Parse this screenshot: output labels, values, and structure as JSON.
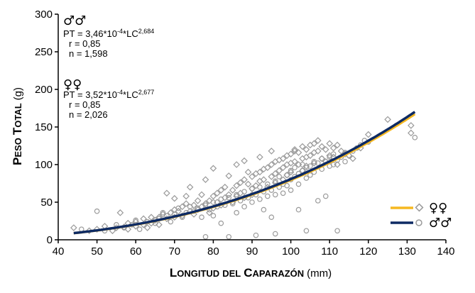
{
  "chart_data": {
    "type": "scatter",
    "xlabel": "Longitud del Caparazón",
    "xlabel_parts": {
      "L": "L",
      "ONGITUD": "ONGITUD",
      "DEL": "DEL",
      "C": "C",
      "APARAZON": "APARAZÓN",
      "unit": "(mm)"
    },
    "ylabel": "Peso Total (g)",
    "ylabel_parts": {
      "P": "P",
      "ESO": "ESO",
      "T": "T",
      "OTAL": "OTAL",
      "unit": "(g)"
    },
    "xlim": [
      40,
      140
    ],
    "ylim": [
      0,
      300
    ],
    "x_ticks": [
      "40",
      "50",
      "60",
      "70",
      "80",
      "90",
      "100",
      "110",
      "120",
      "130",
      "140"
    ],
    "y_ticks": [
      "0",
      "50",
      "100",
      "150",
      "200",
      "250",
      "300"
    ],
    "grid": false,
    "legend_position": "bottom-right",
    "series": [
      {
        "group": "female",
        "symbol": "♀♀",
        "marker": "diamond",
        "marker_color": "#9a9a9a",
        "line_color": "#f6b820",
        "model": {
          "a": 0.000352,
          "b": 2.677,
          "x_range": [
            44,
            132
          ]
        },
        "equation": {
          "prefix": "PT = 3,52*10",
          "exp1": "-4",
          "mid": "*LC",
          "exp2": "2,677"
        },
        "r": "r = 0,85",
        "n": "n = 2,026",
        "scatter_points": [
          [
            44,
            16
          ],
          [
            48,
            12
          ],
          [
            50,
            14
          ],
          [
            52,
            18
          ],
          [
            54,
            12
          ],
          [
            55,
            16
          ],
          [
            56,
            36
          ],
          [
            57,
            17
          ],
          [
            58,
            22
          ],
          [
            58,
            14
          ],
          [
            60,
            24
          ],
          [
            60,
            18
          ],
          [
            62,
            20
          ],
          [
            62,
            28
          ],
          [
            63,
            16
          ],
          [
            64,
            30
          ],
          [
            64,
            22
          ],
          [
            65,
            26
          ],
          [
            66,
            30
          ],
          [
            66,
            20
          ],
          [
            67,
            34
          ],
          [
            68,
            62
          ],
          [
            68,
            28
          ],
          [
            69,
            36
          ],
          [
            70,
            40
          ],
          [
            70,
            30
          ],
          [
            70,
            55
          ],
          [
            71,
            38
          ],
          [
            72,
            44
          ],
          [
            72,
            32
          ],
          [
            73,
            48
          ],
          [
            73,
            58
          ],
          [
            74,
            38
          ],
          [
            74,
            70
          ],
          [
            75,
            46
          ],
          [
            75,
            34
          ],
          [
            76,
            52
          ],
          [
            76,
            40
          ],
          [
            77,
            60
          ],
          [
            77,
            44
          ],
          [
            78,
            48
          ],
          [
            78,
            80
          ],
          [
            79,
            52
          ],
          [
            79,
            36
          ],
          [
            80,
            58
          ],
          [
            80,
            42
          ],
          [
            80,
            95
          ],
          [
            81,
            62
          ],
          [
            81,
            50
          ],
          [
            82,
            66
          ],
          [
            82,
            46
          ],
          [
            83,
            70
          ],
          [
            83,
            56
          ],
          [
            84,
            60
          ],
          [
            84,
            85
          ],
          [
            85,
            66
          ],
          [
            85,
            50
          ],
          [
            86,
            72
          ],
          [
            86,
            58
          ],
          [
            86,
            100
          ],
          [
            87,
            76
          ],
          [
            87,
            62
          ],
          [
            88,
            80
          ],
          [
            88,
            56
          ],
          [
            88,
            105
          ],
          [
            89,
            74
          ],
          [
            89,
            90
          ],
          [
            90,
            84
          ],
          [
            90,
            68
          ],
          [
            90,
            60
          ],
          [
            91,
            88
          ],
          [
            91,
            72
          ],
          [
            92,
            90
          ],
          [
            92,
            78
          ],
          [
            92,
            110
          ],
          [
            93,
            94
          ],
          [
            93,
            80
          ],
          [
            94,
            96
          ],
          [
            94,
            70
          ],
          [
            95,
            100
          ],
          [
            95,
            84
          ],
          [
            95,
            118
          ],
          [
            96,
            104
          ],
          [
            96,
            88
          ],
          [
            96,
            76
          ],
          [
            97,
            106
          ],
          [
            97,
            92
          ],
          [
            98,
            108
          ],
          [
            98,
            96
          ],
          [
            98,
            80
          ],
          [
            99,
            112
          ],
          [
            99,
            100
          ],
          [
            99,
            86
          ],
          [
            100,
            114
          ],
          [
            100,
            102
          ],
          [
            100,
            90
          ],
          [
            101,
            118
          ],
          [
            101,
            104
          ],
          [
            101,
            120
          ],
          [
            102,
            116
          ],
          [
            102,
            100
          ],
          [
            103,
            124
          ],
          [
            103,
            108
          ],
          [
            103,
            92
          ],
          [
            104,
            120
          ],
          [
            104,
            110
          ],
          [
            104,
            98
          ],
          [
            105,
            126
          ],
          [
            105,
            112
          ],
          [
            106,
            128
          ],
          [
            106,
            116
          ],
          [
            106,
            102
          ],
          [
            107,
            132
          ],
          [
            107,
            118
          ],
          [
            108,
            124
          ],
          [
            108,
            108
          ],
          [
            109,
            120
          ],
          [
            109,
            104
          ],
          [
            110,
            128
          ],
          [
            110,
            112
          ],
          [
            111,
            122
          ],
          [
            111,
            110
          ],
          [
            112,
            126
          ],
          [
            112,
            100
          ],
          [
            113,
            118
          ],
          [
            114,
            114
          ],
          [
            115,
            112
          ],
          [
            116,
            108
          ],
          [
            118,
            122
          ],
          [
            120,
            140
          ],
          [
            125,
            160
          ],
          [
            131,
            152
          ],
          [
            131,
            142
          ]
        ]
      },
      {
        "group": "male",
        "symbol": "♂♂",
        "marker": "circle",
        "marker_color": "#9a9a9a",
        "line_color": "#0d2a63",
        "model": {
          "a": 0.000346,
          "b": 2.684,
          "x_range": [
            44,
            132
          ]
        },
        "equation": {
          "prefix": "PT = 3,46*10",
          "exp1": "-4",
          "mid": "*LC",
          "exp2": "2,684"
        },
        "r": "r = 0,85",
        "n": "n = 1,598",
        "scatter_points": [
          [
            46,
            14
          ],
          [
            50,
            38
          ],
          [
            52,
            12
          ],
          [
            55,
            20
          ],
          [
            57,
            16
          ],
          [
            59,
            20
          ],
          [
            60,
            26
          ],
          [
            61,
            14
          ],
          [
            63,
            24
          ],
          [
            65,
            22
          ],
          [
            66,
            28
          ],
          [
            67,
            36
          ],
          [
            68,
            32
          ],
          [
            69,
            24
          ],
          [
            70,
            34
          ],
          [
            71,
            42
          ],
          [
            72,
            30
          ],
          [
            73,
            36
          ],
          [
            74,
            44
          ],
          [
            75,
            38
          ],
          [
            76,
            42
          ],
          [
            77,
            30
          ],
          [
            78,
            46
          ],
          [
            78,
            4
          ],
          [
            79,
            40
          ],
          [
            80,
            50
          ],
          [
            80,
            32
          ],
          [
            81,
            44
          ],
          [
            82,
            54
          ],
          [
            82,
            22
          ],
          [
            83,
            46
          ],
          [
            84,
            4
          ],
          [
            84,
            56
          ],
          [
            85,
            48
          ],
          [
            86,
            60
          ],
          [
            86,
            36
          ],
          [
            87,
            52
          ],
          [
            88,
            64
          ],
          [
            88,
            44
          ],
          [
            89,
            56
          ],
          [
            90,
            68
          ],
          [
            90,
            50
          ],
          [
            91,
            6
          ],
          [
            91,
            60
          ],
          [
            92,
            70
          ],
          [
            92,
            54
          ],
          [
            93,
            64
          ],
          [
            93,
            40
          ],
          [
            94,
            74
          ],
          [
            94,
            58
          ],
          [
            95,
            66
          ],
          [
            95,
            30
          ],
          [
            96,
            78
          ],
          [
            96,
            60
          ],
          [
            96,
            8
          ],
          [
            97,
            70
          ],
          [
            97,
            84
          ],
          [
            98,
            74
          ],
          [
            98,
            62
          ],
          [
            99,
            86
          ],
          [
            99,
            72
          ],
          [
            100,
            80
          ],
          [
            100,
            92
          ],
          [
            100,
            66
          ],
          [
            101,
            84
          ],
          [
            101,
            96
          ],
          [
            102,
            88
          ],
          [
            102,
            74
          ],
          [
            102,
            40
          ],
          [
            103,
            92
          ],
          [
            103,
            100
          ],
          [
            104,
            96
          ],
          [
            104,
            82
          ],
          [
            104,
            12
          ],
          [
            105,
            98
          ],
          [
            105,
            86
          ],
          [
            106,
            104
          ],
          [
            106,
            90
          ],
          [
            107,
            102
          ],
          [
            107,
            52
          ],
          [
            108,
            108
          ],
          [
            108,
            94
          ],
          [
            109,
            104
          ],
          [
            109,
            58
          ],
          [
            110,
            110
          ],
          [
            110,
            98
          ],
          [
            111,
            114
          ],
          [
            111,
            100
          ],
          [
            112,
            106
          ],
          [
            112,
            12
          ],
          [
            113,
            110
          ],
          [
            114,
            116
          ],
          [
            114,
            104
          ],
          [
            115,
            112
          ],
          [
            116,
            118
          ],
          [
            117,
            122
          ],
          [
            118,
            126
          ],
          [
            119,
            132
          ],
          [
            120,
            130
          ],
          [
            132,
            136
          ]
        ]
      }
    ]
  }
}
